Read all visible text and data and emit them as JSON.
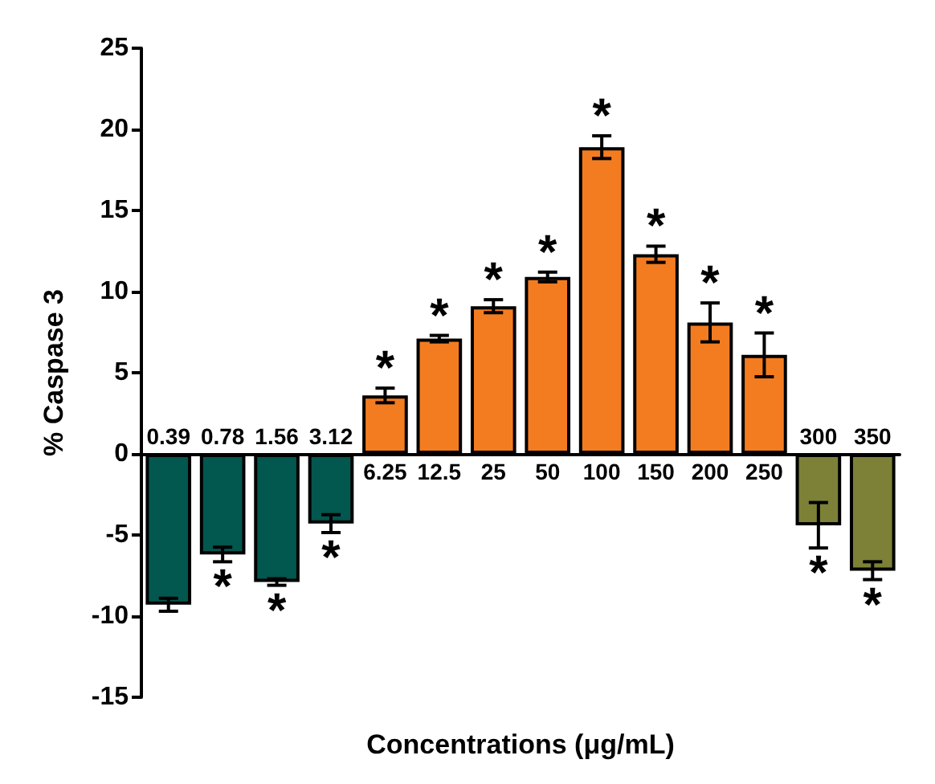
{
  "chart_data": {
    "type": "bar",
    "ylabel": "% Caspase 3",
    "xlabel": "Concentrations (μg/mL)",
    "categories": [
      "0.39",
      "0.78",
      "1.56",
      "3.12",
      "6.25",
      "12.5",
      "25",
      "50",
      "100",
      "150",
      "200",
      "250",
      "300",
      "350"
    ],
    "values": [
      -9.3,
      -6.2,
      -7.9,
      -4.3,
      3.6,
      7.1,
      9.1,
      10.9,
      18.9,
      12.3,
      8.1,
      6.1,
      -4.4,
      -7.2
    ],
    "colors": [
      "#02574f",
      "#02574f",
      "#02574f",
      "#02574f",
      "#f47c20",
      "#f47c20",
      "#f47c20",
      "#f47c20",
      "#f47c20",
      "#f47c20",
      "#f47c20",
      "#f47c20",
      "#7c8137",
      "#7c8137"
    ],
    "errors": [
      0.4,
      0.45,
      0.2,
      0.55,
      0.45,
      0.2,
      0.4,
      0.3,
      0.7,
      0.5,
      1.2,
      1.35,
      1.4,
      0.55
    ],
    "ylim": [
      -15,
      25
    ],
    "yticks": [
      -15,
      -10,
      -5,
      0,
      5,
      10,
      15,
      20,
      25
    ],
    "grid": false,
    "annotations": [
      {
        "text": "*",
        "x": "0.78",
        "y": -6.2
      },
      {
        "text": "*",
        "x": "1.56",
        "y": -7.9
      },
      {
        "text": "*",
        "x": "3.12",
        "y": -4.3
      },
      {
        "text": "*",
        "x": "6.25",
        "y": 3.6
      },
      {
        "text": "*",
        "x": "12.5",
        "y": 7.1
      },
      {
        "text": "*",
        "x": "25",
        "y": 9.1
      },
      {
        "text": "*",
        "x": "50",
        "y": 10.9
      },
      {
        "text": "*",
        "x": "100",
        "y": 18.9
      },
      {
        "text": "*",
        "x": "150",
        "y": 12.3
      },
      {
        "text": "*",
        "x": "200",
        "y": 8.1
      },
      {
        "text": "*",
        "x": "250",
        "y": 6.1
      },
      {
        "text": "*",
        "x": "300",
        "y": -4.4
      },
      {
        "text": "*",
        "x": "350",
        "y": -7.2
      }
    ]
  }
}
